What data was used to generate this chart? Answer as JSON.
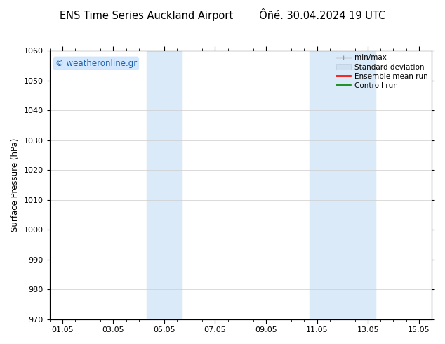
{
  "title_left": "ENS Time Series Auckland Airport",
  "title_right": "Ôñé. 30.04.2024 19 UTC",
  "ylabel": "Surface Pressure (hPa)",
  "ylim": [
    970,
    1060
  ],
  "yticks": [
    970,
    980,
    990,
    1000,
    1010,
    1020,
    1030,
    1040,
    1050,
    1060
  ],
  "xlim_start": 0.0,
  "xlim_end": 14.5,
  "xtick_labels": [
    "01.05",
    "03.05",
    "05.05",
    "07.05",
    "09.05",
    "11.05",
    "13.05",
    "15.05"
  ],
  "xtick_positions": [
    0.5,
    2.5,
    4.5,
    6.5,
    8.5,
    10.5,
    12.5,
    14.5
  ],
  "shaded_bands": [
    {
      "x_start": 3.8,
      "x_end": 5.2
    },
    {
      "x_start": 10.2,
      "x_end": 12.8
    }
  ],
  "shade_color": "#daeaf8",
  "watermark_text": "© weatheronline.gr",
  "watermark_color": "#1a5fad",
  "bg_color": "#ffffff",
  "grid_color": "#cccccc",
  "title_fontsize": 10.5,
  "label_fontsize": 8.5,
  "tick_fontsize": 8,
  "watermark_fontsize": 8.5,
  "legend_fontsize": 7.5,
  "spine_color": "#555555"
}
